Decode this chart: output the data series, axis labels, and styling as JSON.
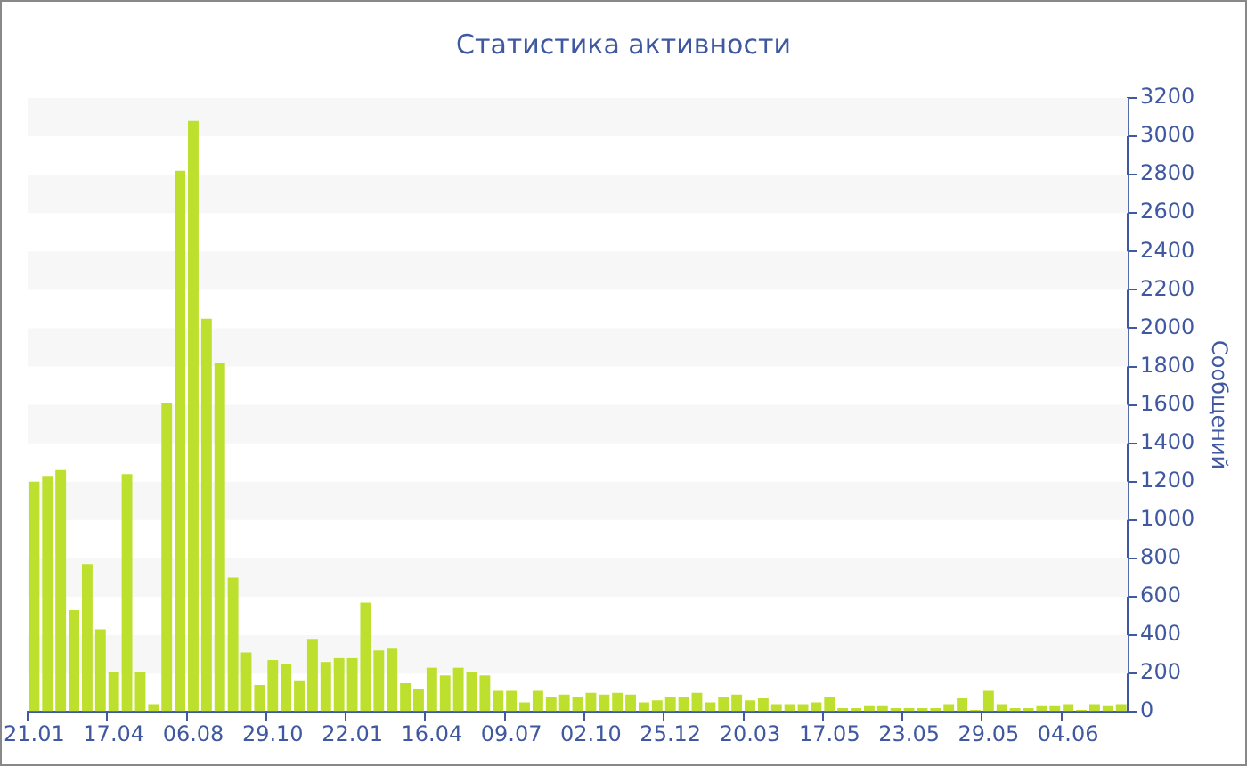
{
  "chart_data": {
    "type": "bar",
    "title": "Статистика активности",
    "ylabel": "Сообщений",
    "categories": [
      "21.01",
      null,
      null,
      null,
      null,
      null,
      "17.04",
      null,
      null,
      null,
      null,
      null,
      "06.08",
      null,
      null,
      null,
      null,
      null,
      "29.10",
      null,
      null,
      null,
      null,
      null,
      "22.01",
      null,
      null,
      null,
      null,
      null,
      "16.04",
      null,
      null,
      null,
      null,
      null,
      "09.07",
      null,
      null,
      null,
      null,
      null,
      "02.10",
      null,
      null,
      null,
      null,
      null,
      "25.12",
      null,
      null,
      null,
      null,
      null,
      "20.03",
      null,
      null,
      null,
      null,
      null,
      "17.05",
      null,
      null,
      null,
      null,
      null,
      "23.05",
      null,
      null,
      null,
      null,
      null,
      "29.05",
      null,
      null,
      null,
      null,
      null,
      "04.06",
      null,
      null,
      null,
      null
    ],
    "values": [
      1200,
      1230,
      1260,
      530,
      770,
      430,
      210,
      1240,
      210,
      40,
      1610,
      2820,
      3080,
      2050,
      1820,
      700,
      310,
      140,
      270,
      250,
      160,
      380,
      260,
      280,
      280,
      570,
      320,
      330,
      150,
      120,
      230,
      190,
      230,
      210,
      190,
      110,
      110,
      50,
      110,
      80,
      90,
      80,
      100,
      90,
      100,
      90,
      50,
      60,
      80,
      80,
      100,
      50,
      80,
      90,
      60,
      70,
      40,
      40,
      40,
      50,
      80,
      20,
      20,
      30,
      30,
      20,
      20,
      20,
      20,
      40,
      70,
      10,
      110,
      40,
      20,
      20,
      30,
      30,
      40,
      10,
      40,
      30,
      40
    ],
    "color": "#bde02e",
    "ylim": [
      0,
      3200
    ],
    "yticks": [
      0,
      200,
      400,
      600,
      800,
      1000,
      1200,
      1400,
      1600,
      1800,
      2000,
      2200,
      2400,
      2600,
      2800,
      3000,
      3200
    ],
    "bands": [
      {
        "axis": "y",
        "from": 200,
        "to": 400,
        "color": "#f7f7f7"
      },
      {
        "axis": "y",
        "from": 600,
        "to": 800,
        "color": "#f7f7f7"
      },
      {
        "axis": "y",
        "from": 1000,
        "to": 1200,
        "color": "#f7f7f7"
      },
      {
        "axis": "y",
        "from": 1400,
        "to": 1600,
        "color": "#f7f7f7"
      },
      {
        "axis": "y",
        "from": 1800,
        "to": 2000,
        "color": "#f7f7f7"
      },
      {
        "axis": "y",
        "from": 2200,
        "to": 2400,
        "color": "#f7f7f7"
      },
      {
        "axis": "y",
        "from": 2600,
        "to": 2800,
        "color": "#f7f7f7"
      },
      {
        "axis": "y",
        "from": 3000,
        "to": 3200,
        "color": "#f7f7f7"
      }
    ],
    "legend": false
  }
}
